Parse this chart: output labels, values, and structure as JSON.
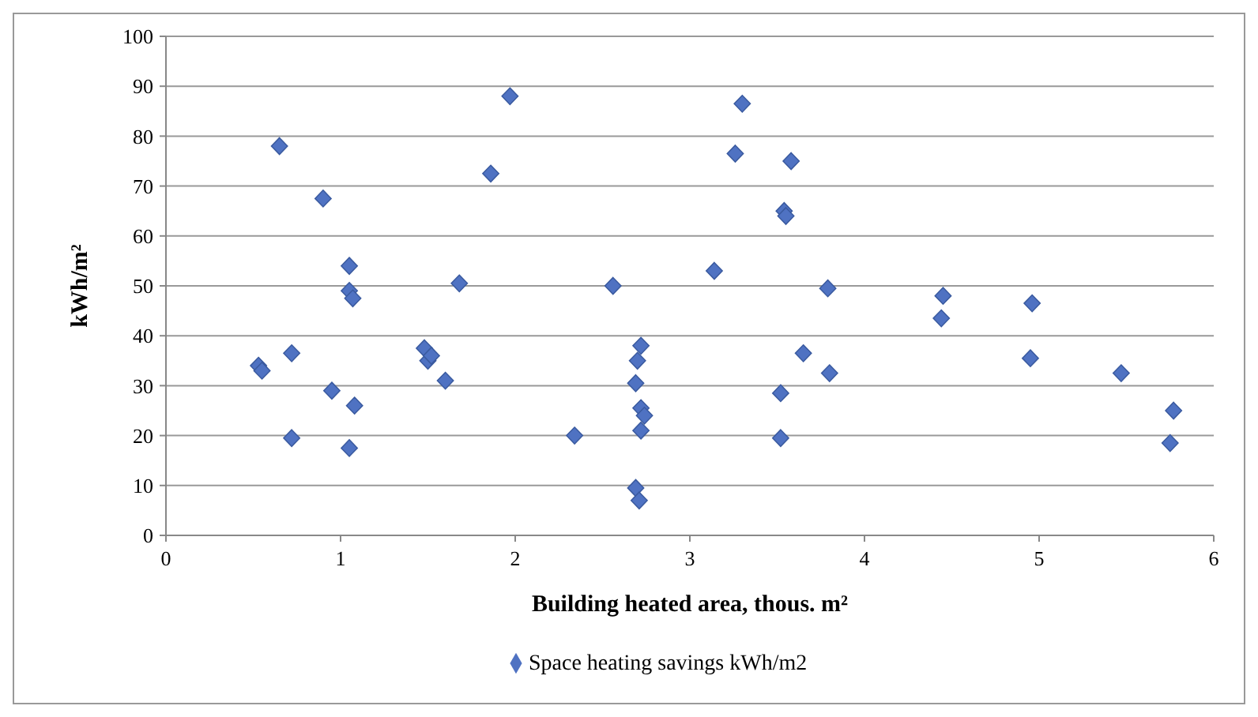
{
  "chart_data": {
    "type": "scatter",
    "xlabel": "Building heated area, thous. m²",
    "ylabel": "kWh/m²",
    "xlim": [
      0,
      6
    ],
    "xticks": [
      0,
      1,
      2,
      3,
      4,
      5,
      6
    ],
    "ylim": [
      0,
      100
    ],
    "yticks": [
      0,
      10,
      20,
      30,
      40,
      50,
      60,
      70,
      80,
      90,
      100
    ],
    "grid": "y",
    "legend": "bottom",
    "marker": "diamond",
    "series": [
      {
        "name": "Space heating savings kWh/m2",
        "color": "#4f72c2",
        "x": [
          0.53,
          0.55,
          0.65,
          0.72,
          0.72,
          0.9,
          0.95,
          1.05,
          1.05,
          1.07,
          1.08,
          1.05,
          1.48,
          1.5,
          1.52,
          1.6,
          1.68,
          1.86,
          1.97,
          2.34,
          2.56,
          2.7,
          2.72,
          2.69,
          2.72,
          2.74,
          2.72,
          2.69,
          2.71,
          3.14,
          3.26,
          3.3,
          3.52,
          3.52,
          3.54,
          3.55,
          3.58,
          3.65,
          3.79,
          3.8,
          4.45,
          4.44,
          4.96,
          4.95,
          5.47,
          5.77,
          5.75
        ],
        "values": [
          34,
          33,
          78,
          36.5,
          19.5,
          67.5,
          29,
          54,
          49,
          47.5,
          26,
          17.5,
          37.5,
          35,
          36,
          31,
          50.5,
          72.5,
          88,
          20,
          50,
          35,
          38,
          30.5,
          25.5,
          24,
          21,
          9.5,
          7,
          53,
          76.5,
          86.5,
          19.5,
          28.5,
          65,
          64,
          75,
          36.5,
          49.5,
          32.5,
          48,
          43.5,
          46.5,
          35.5,
          32.5,
          25,
          18.5
        ]
      }
    ]
  }
}
